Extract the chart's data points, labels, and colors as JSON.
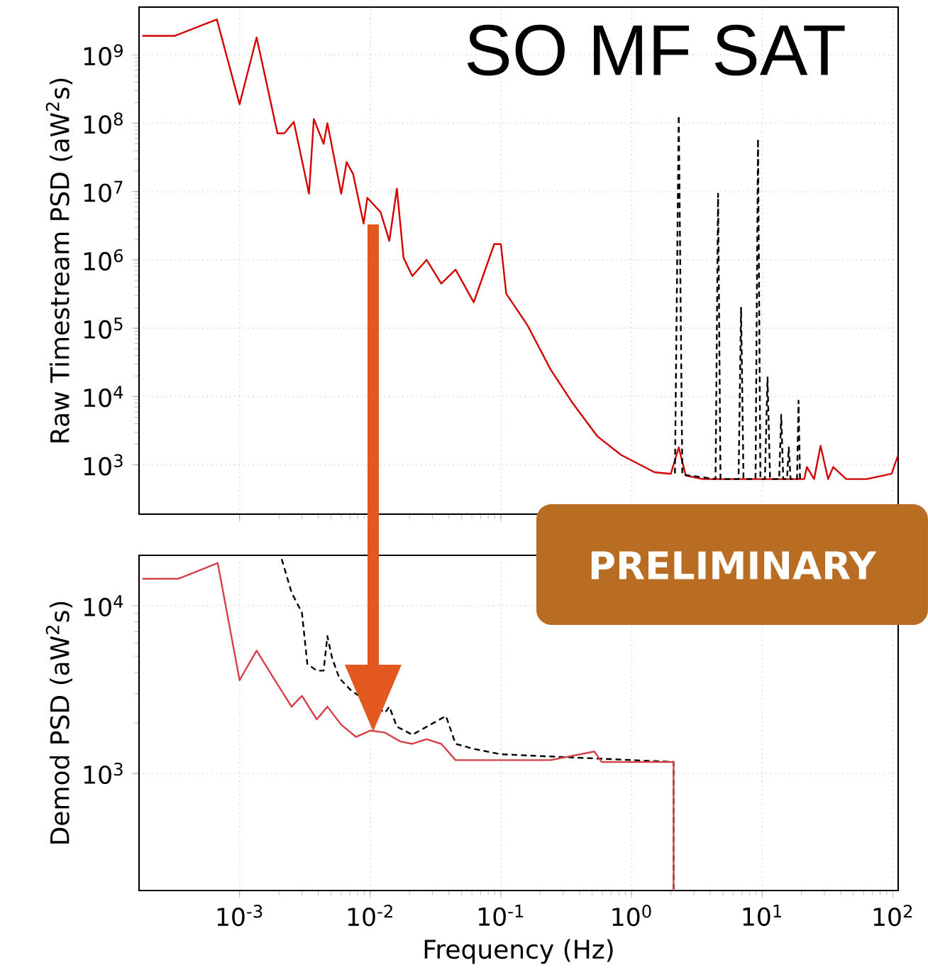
{
  "chart_data": [
    {
      "type": "line",
      "ylabel": "Raw Timestream PSD (aW$^{2}$s)",
      "annotations": [
        "SO MF SAT"
      ],
      "log": "xy",
      "grid": true,
      "tick_labels": "y",
      "xlim": [
        0.00017,
        110
      ],
      "ylim": [
        190,
        5000000000
      ],
      "xticks": [
        {
          "value": 0.001,
          "label": null
        },
        {
          "value": 0.01,
          "label": null
        },
        {
          "value": 0.1,
          "label": null
        },
        {
          "value": 1,
          "label": null
        },
        {
          "value": 10,
          "label": null
        },
        {
          "value": 100,
          "label": null
        }
      ],
      "yticks": [
        {
          "value": 1000,
          "label": "10$^{3}$"
        },
        {
          "value": 10000,
          "label": "10$^{4}$"
        },
        {
          "value": 100000,
          "label": "10$^{5}$"
        },
        {
          "value": 1000000,
          "label": "10$^{6}$"
        },
        {
          "value": 10000000,
          "label": "10$^{7}$"
        },
        {
          "value": 100000000,
          "label": "10$^{8}$"
        },
        {
          "value": 1000000000,
          "label": "10$^{9}$"
        }
      ],
      "series": [
        {
          "color": "#d40000",
          "line_style": "solid",
          "x": [
            0.00018,
            0.00032,
            0.00067,
            0.001,
            0.00135,
            0.00195,
            0.0022,
            0.0026,
            0.0034,
            0.0037,
            0.0044,
            0.0047,
            0.006,
            0.0066,
            0.0074,
            0.0089,
            0.0095,
            0.012,
            0.014,
            0.016,
            0.018,
            0.021,
            0.027,
            0.035,
            0.045,
            0.062,
            0.089,
            0.1,
            0.11,
            0.16,
            0.24,
            0.35,
            0.55,
            0.83,
            1.5,
            2.0,
            2.3,
            2.6,
            3.5,
            21,
            22,
            25,
            28,
            32,
            35,
            44,
            63,
            98,
            110
          ],
          "values": [
            1900000000,
            1900000000,
            3300000000,
            190000000,
            1800000000,
            71000000,
            71000000,
            105000000,
            9300000,
            115000000,
            50000000,
            100000000,
            9300000,
            27000000,
            18000000,
            3400000,
            8100000,
            5000000,
            1900000,
            11000000,
            1070000,
            580000,
            1000000,
            450000,
            720000,
            240000,
            1700000,
            1700000,
            320000,
            110000,
            25000,
            8300,
            2600,
            1400,
            780,
            740,
            1800,
            700,
            620,
            620,
            930,
            620,
            1900,
            620,
            930,
            620,
            620,
            740,
            1400
          ]
        },
        {
          "color": "#000000",
          "line_style": "dashed",
          "x": [
            2.15,
            2.3,
            2.45,
            4.4,
            4.6,
            4.8,
            6.6,
            6.9,
            7.2,
            8.9,
            9.3,
            9.7,
            10.5,
            11,
            11.5,
            13.5,
            14,
            14.5,
            15.5,
            16,
            16.5,
            18.5,
            19,
            19.5
          ],
          "values": [
            750,
            130000000,
            720,
            620,
            9300000,
            620,
            620,
            200000,
            620,
            620,
            59000000,
            620,
            620,
            19000,
            620,
            620,
            5400,
            620,
            620,
            1800,
            620,
            620,
            8700,
            620
          ]
        }
      ]
    },
    {
      "type": "line",
      "xlabel": "Frequency (Hz)",
      "ylabel": "Demod PSD (aW$^{2}$s)",
      "annotations": [
        "PRELIMINARY"
      ],
      "log": "xy",
      "grid": true,
      "xlim": [
        0.00017,
        110
      ],
      "ylim": [
        200,
        20000
      ],
      "xticks": [
        {
          "value": 0.001,
          "label": "10$^{-3}$"
        },
        {
          "value": 0.01,
          "label": "10$^{-2}$"
        },
        {
          "value": 0.1,
          "label": "10$^{-1}$"
        },
        {
          "value": 1,
          "label": "10$^{0}$"
        },
        {
          "value": 10,
          "label": "10$^{1}$"
        },
        {
          "value": 100,
          "label": "10$^{2}$"
        }
      ],
      "yticks": [
        {
          "value": 1000,
          "label": "10$^{3}$"
        },
        {
          "value": 10000,
          "label": "10$^{4}$"
        }
      ],
      "series": [
        {
          "color": "#000000",
          "line_style": "dashed",
          "x": [
            0.0021,
            0.0025,
            0.003,
            0.0033,
            0.0039,
            0.0044,
            0.0047,
            0.0051,
            0.0058,
            0.0072,
            0.0083,
            0.013,
            0.014,
            0.016,
            0.021,
            0.038,
            0.045,
            0.062,
            0.1,
            0.24,
            0.52,
            0.59,
            2.1,
            2.1
          ],
          "values": [
            19000,
            12000,
            9100,
            4500,
            4100,
            4100,
            6600,
            4900,
            3700,
            3100,
            null,
            2300,
            2500,
            1900,
            1700,
            2200,
            1500,
            1400,
            1300,
            null,
            null,
            null,
            1170,
            200
          ]
        },
        {
          "color": "#d6404a",
          "line_style": "solid",
          "x": [
            0.00018,
            0.00034,
            0.00068,
            0.001,
            0.00135,
            0.00195,
            0.0025,
            0.003,
            0.0039,
            0.0047,
            0.006,
            0.0078,
            0.01,
            0.013,
            0.017,
            0.021,
            0.027,
            0.035,
            0.045,
            0.074,
            0.1,
            0.24,
            0.52,
            0.59,
            2.1,
            2.1
          ],
          "values": [
            14500,
            14500,
            18000,
            3600,
            5400,
            3400,
            2500,
            2900,
            2100,
            2500,
            1950,
            1650,
            1800,
            1750,
            1550,
            1500,
            1600,
            1500,
            1200,
            1200,
            1200,
            1200,
            1350,
            1170,
            1170,
            200
          ]
        }
      ]
    }
  ]
}
